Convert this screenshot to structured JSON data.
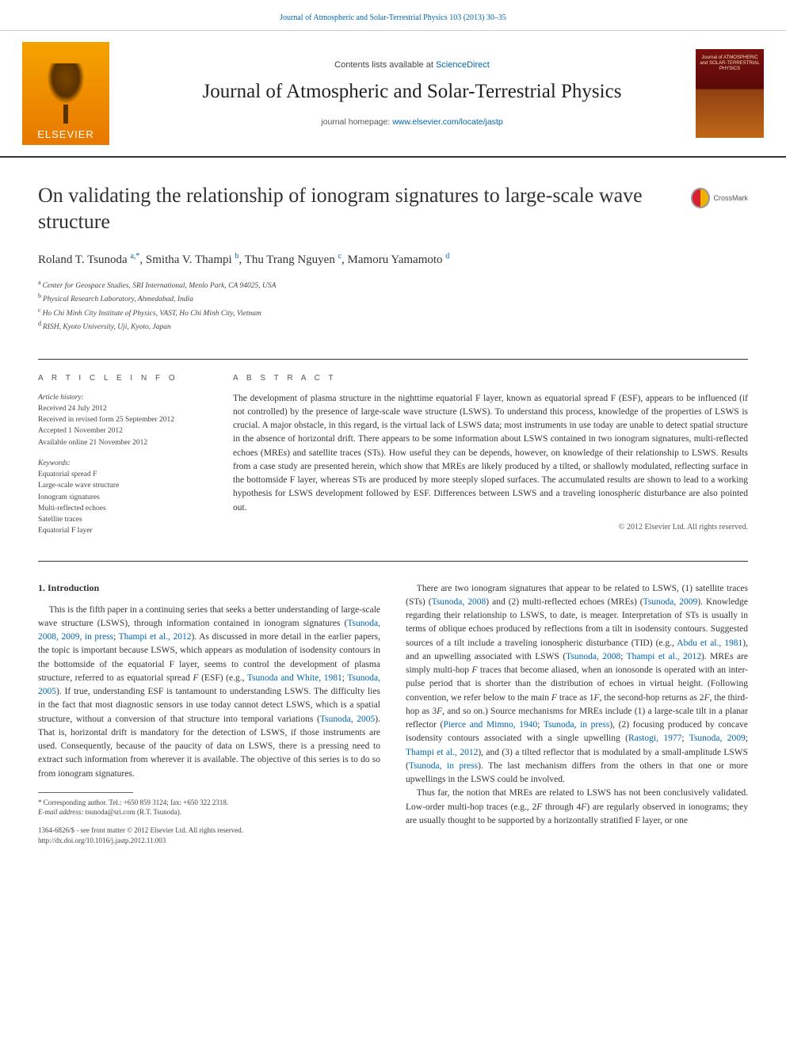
{
  "top_ref": "Journal of Atmospheric and Solar-Terrestrial Physics 103 (2013) 30–35",
  "masthead": {
    "contents_pre": "Contents lists available at ",
    "contents_link": "ScienceDirect",
    "journal": "Journal of Atmospheric and Solar-Terrestrial Physics",
    "homepage_pre": "journal homepage: ",
    "homepage_link": "www.elsevier.com/locate/jastp",
    "elsevier": "ELSEVIER",
    "cover_label": "Journal of ATMOSPHERIC and SOLAR-TERRESTRIAL PHYSICS"
  },
  "article": {
    "title": "On validating the relationship of ionogram signatures to large-scale wave structure",
    "crossmark": "CrossMark",
    "authors_html": "Roland T. Tsunoda <sup>a,</sup>*, Smitha V. Thampi <sup>b</sup>, Thu Trang Nguyen <sup>c</sup>, Mamoru Yamamoto <sup>d</sup>",
    "author_names": [
      "Roland T. Tsunoda",
      "Smitha V. Thampi",
      "Thu Trang Nguyen",
      "Mamoru Yamamoto"
    ],
    "affiliations": [
      "Center for Geospace Studies, SRI International, Menlo Park, CA 94025, USA",
      "Physical Research Laboratory, Ahmedabad, India",
      "Ho Chi Minh City Institute of Physics, VAST, Ho Chi Minh City, Vietnam",
      "RISH, Kyoto University, Uji, Kyoto, Japan"
    ],
    "aff_markers": [
      "a",
      "b",
      "c",
      "d"
    ]
  },
  "info": {
    "section_label": "A R T I C L E   I N F O",
    "history_label": "Article history:",
    "received": "Received 24 July 2012",
    "revised": "Received in revised form 25 September 2012",
    "accepted": "Accepted 1 November 2012",
    "online": "Available online 21 November 2012",
    "keywords_label": "Keywords:",
    "keywords": [
      "Equatorial spread F",
      "Large-scale wave structure",
      "Ionogram signatures",
      "Multi-reflected echoes",
      "Satellite traces",
      "Equatorial F layer"
    ]
  },
  "abstract": {
    "section_label": "A B S T R A C T",
    "text": "The development of plasma structure in the nighttime equatorial F layer, known as equatorial spread F (ESF), appears to be influenced (if not controlled) by the presence of large-scale wave structure (LSWS). To understand this process, knowledge of the properties of LSWS is crucial. A major obstacle, in this regard, is the virtual lack of LSWS data; most instruments in use today are unable to detect spatial structure in the absence of horizontal drift. There appears to be some information about LSWS contained in two ionogram signatures, multi-reflected echoes (MREs) and satellite traces (STs). How useful they can be depends, however, on knowledge of their relationship to LSWS. Results from a case study are presented herein, which show that MREs are likely produced by a tilted, or shallowly modulated, reflecting surface in the bottomside F layer, whereas STs are produced by more steeply sloped surfaces. The accumulated results are shown to lead to a working hypothesis for LSWS development followed by ESF. Differences between LSWS and a traveling ionospheric disturbance are also pointed out.",
    "copyright": "© 2012 Elsevier Ltd. All rights reserved."
  },
  "body": {
    "intro_head": "1. Introduction",
    "p1_pre": "This is the fifth paper in a continuing series that seeks a better understanding of large-scale wave structure (LSWS), through information contained in ionogram signatures (",
    "p1_ref1": "Tsunoda, 2008, 2009, in press",
    "p1_mid1": "; ",
    "p1_ref2": "Thampi et al., 2012",
    "p1_mid2": "). As discussed in more detail in the earlier papers, the topic is important because LSWS, which appears as modulation of isodensity contours in the bottomside of the equatorial F layer, seems to control the development of plasma structure, referred to as equatorial spread ",
    "p1_i1": "F",
    "p1_mid3": " (ESF) (e.g., ",
    "p1_ref3": "Tsunoda and White, 1981",
    "p1_mid4": "; ",
    "p1_ref4": "Tsunoda, 2005",
    "p1_mid5": "). If true, understanding ESF is tantamount to understanding LSWS. The difficulty lies in the fact that most diagnostic sensors in use today cannot detect LSWS, which is a spatial structure, without a conversion of that structure into temporal variations (",
    "p1_ref5": "Tsunoda, 2005",
    "p1_mid6": "). That is, horizontal drift is mandatory for the detection of LSWS, if those instruments are used. Consequently, because of the paucity of data on LSWS, there is a pressing need to extract such information from wherever it is available. The objective of this series is to do so from ionogram signatures.",
    "p2_pre": "There are two ionogram signatures that appear to be related to LSWS, (1) satellite traces (STs) (",
    "p2_ref1": "Tsunoda, 2008",
    "p2_mid1": ") and (2) multi-reflected echoes (MREs) (",
    "p2_ref2": "Tsunoda, 2009",
    "p2_mid2": "). Knowledge regarding their relationship to LSWS, to date, is meager. Interpretation of STs is usually in terms of oblique echoes produced by reflections from a tilt in isodensity contours. Suggested sources of a tilt include a traveling ionospheric disturbance (TID) (e.g., ",
    "p2_ref3": "Abdu et al., 1981",
    "p2_mid3": "), and an upwelling associated with LSWS (",
    "p2_ref4": "Tsunoda, 2008",
    "p2_mid4": "; ",
    "p2_ref5": "Thampi et al., 2012",
    "p2_mid5": "). MREs are simply multi-hop ",
    "p2_i1": "F",
    "p2_mid6": " traces that become aliased, when an ionosonde is operated with an inter-pulse period that is shorter than the distribution of echoes in virtual height. (Following convention, we refer below to the main ",
    "p2_i2": "F",
    "p2_mid7": " trace as 1",
    "p2_i3": "F",
    "p2_mid8": ", the second-hop returns as 2",
    "p2_i4": "F",
    "p2_mid9": ", the third-hop as 3",
    "p2_i5": "F",
    "p2_mid10": ", and so on.) Source mechanisms for MREs include (1) a large-scale tilt in a planar reflector (",
    "p2_ref6": "Pierce and Mimno, 1940",
    "p2_mid11": "; ",
    "p2_ref7": "Tsunoda, in press",
    "p2_mid12": "), (2) focusing produced by concave isodensity contours associated with a single upwelling (",
    "p2_ref8": "Rastogi, 1977",
    "p2_mid13": "; ",
    "p2_ref9": "Tsunoda, 2009",
    "p2_mid14": "; ",
    "p2_ref10": "Thampi et al., 2012",
    "p2_mid15": "), and (3) a tilted reflector that is modulated by a small-amplitude LSWS (",
    "p2_ref11": "Tsunoda, in press",
    "p2_mid16": "). The last mechanism differs from the others in that one or more upwellings in the LSWS could be involved.",
    "p3": "Thus far, the notion that MREs are related to LSWS has not been conclusively validated. Low-order multi-hop traces (e.g., 2F through 4F) are regularly observed in ionograms; they are usually thought to be supported by a horizontally stratified F layer, or one"
  },
  "footnote": {
    "corr": "* Corresponding author. Tel.: +650 859 3124; fax: +650 322 2318.",
    "email_lbl": "E-mail address:",
    "email": "tsunoda@sri.com (R.T. Tsunoda).",
    "issn": "1364-6826/$ - see front matter © 2012 Elsevier Ltd. All rights reserved.",
    "doi": "http://dx.doi.org/10.1016/j.jastp.2012.11.003"
  }
}
